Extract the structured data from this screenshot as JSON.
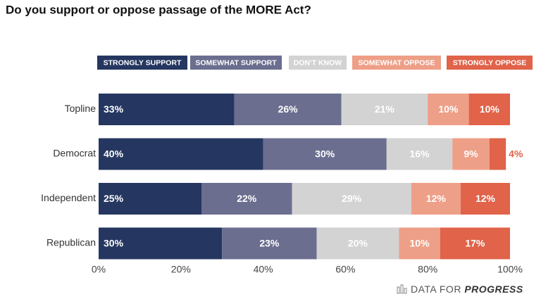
{
  "chart_data": {
    "type": "stacked_bar_horizontal",
    "title": "Do you support or oppose passage of the MORE Act?",
    "categories": [
      "Topline",
      "Democrat",
      "Independent",
      "Republican"
    ],
    "series": [
      {
        "name": "STRONGLY SUPPORT",
        "color": "#253760",
        "values": [
          33,
          40,
          25,
          30
        ],
        "value_labels": [
          "33%",
          "40%",
          "25%",
          "30%"
        ]
      },
      {
        "name": "SOMEWHAT SUPPORT",
        "color": "#6b6e8f",
        "values": [
          26,
          30,
          22,
          23
        ],
        "value_labels": [
          "26%",
          "30%",
          "22%",
          "23%"
        ]
      },
      {
        "name": "DON'T KNOW",
        "color": "#d3d3d4",
        "values": [
          21,
          16,
          29,
          20
        ],
        "value_labels": [
          "21%",
          "16%",
          "29%",
          "20%"
        ]
      },
      {
        "name": "SOMEWHAT OPPOSE",
        "color": "#ee9f87",
        "values": [
          10,
          9,
          12,
          10
        ],
        "value_labels": [
          "10%",
          "9%",
          "12%",
          "10%"
        ]
      },
      {
        "name": "STRONGLY OPPOSE",
        "color": "#e0634a",
        "values": [
          10,
          4,
          12,
          17
        ],
        "value_labels": [
          "10%",
          "4%",
          "12%",
          "17%"
        ]
      }
    ],
    "xlim": [
      0,
      100
    ],
    "xticks": [
      {
        "value": 0,
        "label": "0%"
      },
      {
        "value": 20,
        "label": "20%"
      },
      {
        "value": 40,
        "label": "40%"
      },
      {
        "value": 60,
        "label": "60%"
      },
      {
        "value": 80,
        "label": "80%"
      },
      {
        "value": 100,
        "label": "100%"
      }
    ],
    "legend": "top",
    "brand_prefix": "DATA FOR",
    "brand_emphasis": "PROGRESS"
  }
}
